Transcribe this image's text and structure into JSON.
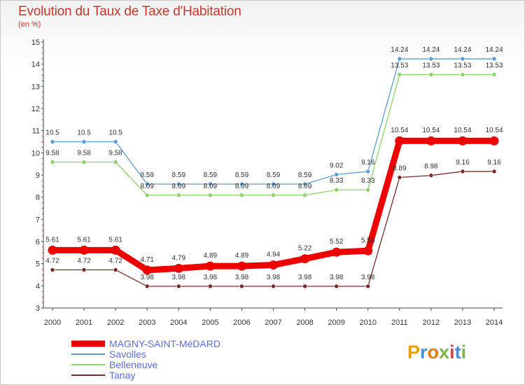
{
  "title": "Evolution du Taux de Taxe d'Habitation",
  "subtitle": "(en %)",
  "logo": {
    "text": "Proxiti",
    "letters": [
      "P",
      "r",
      "o",
      "x",
      "i",
      "t",
      "i"
    ]
  },
  "chart_data": {
    "type": "line",
    "categories": [
      "2000",
      "2001",
      "2002",
      "2003",
      "2004",
      "2005",
      "2006",
      "2007",
      "2008",
      "2009",
      "2010",
      "2011",
      "2012",
      "2013",
      "2014"
    ],
    "ylim": [
      3,
      15
    ],
    "yticks": [
      3,
      4,
      5,
      6,
      7,
      8,
      9,
      10,
      11,
      12,
      13,
      14,
      15
    ],
    "grid": false,
    "legend": "bottom-left",
    "series": [
      {
        "name": "MAGNY-SAINT-MéDARD",
        "color": "#ee0000",
        "values": [
          5.61,
          5.61,
          5.61,
          4.71,
          4.79,
          4.89,
          4.89,
          4.94,
          5.22,
          5.52,
          5.58,
          10.54,
          10.54,
          10.54,
          10.54
        ],
        "labels": [
          "5.61",
          "5.61",
          "5.61",
          "4.71",
          "4.79",
          "4.89",
          "4.89",
          "4.94",
          "5.22",
          "5.52",
          "5.58",
          "10.54",
          "10.54",
          "10.54",
          "10.54"
        ]
      },
      {
        "name": "Savolles",
        "color": "#5b9bd5",
        "values": [
          10.5,
          10.5,
          10.5,
          8.59,
          8.59,
          8.59,
          8.59,
          8.59,
          8.59,
          9.02,
          9.16,
          14.24,
          14.24,
          14.24,
          14.24
        ],
        "labels": [
          "10.5",
          "10.5",
          "10.5",
          "8.59",
          "8.59",
          "8.59",
          "8.59",
          "8.59",
          "8.59",
          "9.02",
          "9.16",
          "14.24",
          "14.24",
          "14.24",
          "14.24"
        ]
      },
      {
        "name": "Belleneuve",
        "color": "#8dd36a",
        "values": [
          9.58,
          9.58,
          9.58,
          8.09,
          8.09,
          8.09,
          8.09,
          8.09,
          8.09,
          8.33,
          8.33,
          13.53,
          13.53,
          13.53,
          13.53
        ],
        "labels": [
          "9.58",
          "9.58",
          "9.58",
          "8.09",
          "8.09",
          "8.09",
          "8.09",
          "8.09",
          "8.09",
          "8.33",
          "8.33",
          "13.53",
          "13.53",
          "13.53",
          "13.53"
        ]
      },
      {
        "name": "Tanay",
        "color": "#7a2a2a",
        "values": [
          4.72,
          4.72,
          4.72,
          3.98,
          3.98,
          3.98,
          3.98,
          3.98,
          3.98,
          3.98,
          3.98,
          8.89,
          8.98,
          9.16,
          9.16
        ],
        "labels": [
          "4.72",
          "4.72",
          "4.72",
          "3.98",
          "3.98",
          "3.98",
          "3.98",
          "3.98",
          "3.98",
          "3.98",
          "3.98",
          "8.89",
          "8.98",
          "9.16",
          "9.16"
        ]
      }
    ]
  }
}
